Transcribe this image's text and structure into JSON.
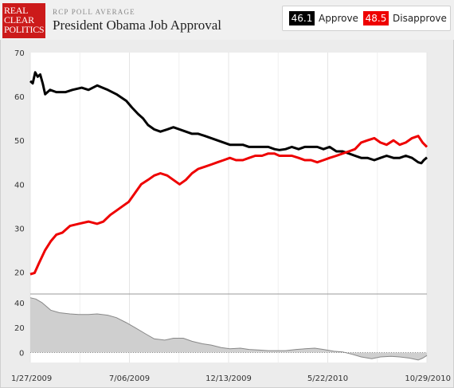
{
  "brand": {
    "logo_lines": [
      "REAL",
      "CLEAR",
      "POLITICS"
    ]
  },
  "header": {
    "kicker": "RCP POLL AVERAGE",
    "title": "President Obama Job Approval"
  },
  "legend": [
    {
      "value": "46.1",
      "label": "Approve",
      "color": "#000000"
    },
    {
      "value": "48.5",
      "label": "Disapprove",
      "color": "#ee0000"
    }
  ],
  "chart_data": {
    "type": "line",
    "title": "President Obama Job Approval",
    "x_tick_labels": [
      "1/27/2009",
      "7/06/2009",
      "12/13/2009",
      "5/22/2010",
      "10/29/2010"
    ],
    "x_domain": [
      "2009-01-27",
      "2010-10-29"
    ],
    "main": {
      "ylim": [
        15,
        70
      ],
      "yticks": [
        20,
        30,
        40,
        50,
        60,
        70
      ],
      "grid": "vertical",
      "series": [
        {
          "name": "Approve",
          "color": "#000000",
          "points": [
            [
              "2009-01-27",
              63.5
            ],
            [
              "2009-01-31",
              63.0
            ],
            [
              "2009-02-04",
              65.5
            ],
            [
              "2009-02-08",
              64.5
            ],
            [
              "2009-02-12",
              65.0
            ],
            [
              "2009-02-16",
              63.0
            ],
            [
              "2009-02-20",
              60.5
            ],
            [
              "2009-02-28",
              61.5
            ],
            [
              "2009-03-10",
              61.0
            ],
            [
              "2009-03-25",
              61.0
            ],
            [
              "2009-04-05",
              61.5
            ],
            [
              "2009-04-20",
              62.0
            ],
            [
              "2009-05-01",
              61.5
            ],
            [
              "2009-05-15",
              62.5
            ],
            [
              "2009-06-01",
              61.5
            ],
            [
              "2009-06-15",
              60.5
            ],
            [
              "2009-07-01",
              59.0
            ],
            [
              "2009-07-10",
              57.5
            ],
            [
              "2009-07-20",
              56.0
            ],
            [
              "2009-07-28",
              55.0
            ],
            [
              "2009-08-05",
              53.5
            ],
            [
              "2009-08-15",
              52.5
            ],
            [
              "2009-08-25",
              52.0
            ],
            [
              "2009-09-05",
              52.5
            ],
            [
              "2009-09-15",
              53.0
            ],
            [
              "2009-09-25",
              52.5
            ],
            [
              "2009-10-05",
              52.0
            ],
            [
              "2009-10-15",
              51.5
            ],
            [
              "2009-10-25",
              51.5
            ],
            [
              "2009-11-05",
              51.0
            ],
            [
              "2009-11-15",
              50.5
            ],
            [
              "2009-11-25",
              50.0
            ],
            [
              "2009-12-05",
              49.5
            ],
            [
              "2009-12-15",
              49.0
            ],
            [
              "2009-12-25",
              49.0
            ],
            [
              "2010-01-05",
              49.0
            ],
            [
              "2010-01-15",
              48.5
            ],
            [
              "2010-01-25",
              48.5
            ],
            [
              "2010-02-05",
              48.5
            ],
            [
              "2010-02-15",
              48.5
            ],
            [
              "2010-02-25",
              48.0
            ],
            [
              "2010-03-05",
              47.8
            ],
            [
              "2010-03-15",
              48.0
            ],
            [
              "2010-03-25",
              48.5
            ],
            [
              "2010-04-05",
              48.0
            ],
            [
              "2010-04-15",
              48.5
            ],
            [
              "2010-04-25",
              48.5
            ],
            [
              "2010-05-05",
              48.5
            ],
            [
              "2010-05-15",
              48.0
            ],
            [
              "2010-05-25",
              48.5
            ],
            [
              "2010-06-05",
              47.5
            ],
            [
              "2010-06-15",
              47.5
            ],
            [
              "2010-06-25",
              47.0
            ],
            [
              "2010-07-05",
              46.5
            ],
            [
              "2010-07-15",
              46.0
            ],
            [
              "2010-07-25",
              46.0
            ],
            [
              "2010-08-05",
              45.5
            ],
            [
              "2010-08-15",
              46.0
            ],
            [
              "2010-08-25",
              46.5
            ],
            [
              "2010-09-05",
              46.0
            ],
            [
              "2010-09-15",
              46.0
            ],
            [
              "2010-09-25",
              46.5
            ],
            [
              "2010-10-05",
              46.0
            ],
            [
              "2010-10-15",
              45.0
            ],
            [
              "2010-10-20",
              44.8
            ],
            [
              "2010-10-24",
              45.5
            ],
            [
              "2010-10-29",
              46.1
            ]
          ]
        },
        {
          "name": "Disapprove",
          "color": "#ee0000",
          "points": [
            [
              "2009-01-27",
              19.5
            ],
            [
              "2009-02-03",
              19.8
            ],
            [
              "2009-02-10",
              22.0
            ],
            [
              "2009-02-20",
              25.0
            ],
            [
              "2009-03-01",
              27.0
            ],
            [
              "2009-03-10",
              28.5
            ],
            [
              "2009-03-20",
              29.0
            ],
            [
              "2009-04-01",
              30.5
            ],
            [
              "2009-04-15",
              31.0
            ],
            [
              "2009-05-01",
              31.5
            ],
            [
              "2009-05-15",
              31.0
            ],
            [
              "2009-05-25",
              31.5
            ],
            [
              "2009-06-05",
              33.0
            ],
            [
              "2009-06-15",
              34.0
            ],
            [
              "2009-06-25",
              35.0
            ],
            [
              "2009-07-05",
              36.0
            ],
            [
              "2009-07-15",
              38.0
            ],
            [
              "2009-07-25",
              40.0
            ],
            [
              "2009-08-05",
              41.0
            ],
            [
              "2009-08-15",
              42.0
            ],
            [
              "2009-08-25",
              42.5
            ],
            [
              "2009-09-05",
              42.0
            ],
            [
              "2009-09-15",
              41.0
            ],
            [
              "2009-09-25",
              40.0
            ],
            [
              "2009-10-05",
              41.0
            ],
            [
              "2009-10-15",
              42.5
            ],
            [
              "2009-10-25",
              43.5
            ],
            [
              "2009-11-05",
              44.0
            ],
            [
              "2009-11-15",
              44.5
            ],
            [
              "2009-11-25",
              45.0
            ],
            [
              "2009-12-05",
              45.5
            ],
            [
              "2009-12-15",
              46.0
            ],
            [
              "2009-12-25",
              45.5
            ],
            [
              "2010-01-05",
              45.5
            ],
            [
              "2010-01-15",
              46.0
            ],
            [
              "2010-01-25",
              46.5
            ],
            [
              "2010-02-05",
              46.5
            ],
            [
              "2010-02-15",
              47.0
            ],
            [
              "2010-02-25",
              47.0
            ],
            [
              "2010-03-05",
              46.5
            ],
            [
              "2010-03-15",
              46.5
            ],
            [
              "2010-03-25",
              46.5
            ],
            [
              "2010-04-05",
              46.0
            ],
            [
              "2010-04-15",
              45.5
            ],
            [
              "2010-04-25",
              45.5
            ],
            [
              "2010-05-05",
              45.0
            ],
            [
              "2010-05-15",
              45.5
            ],
            [
              "2010-05-25",
              46.0
            ],
            [
              "2010-06-05",
              46.5
            ],
            [
              "2010-06-15",
              47.0
            ],
            [
              "2010-06-25",
              47.5
            ],
            [
              "2010-07-05",
              48.0
            ],
            [
              "2010-07-15",
              49.5
            ],
            [
              "2010-07-25",
              50.0
            ],
            [
              "2010-08-05",
              50.5
            ],
            [
              "2010-08-15",
              49.5
            ],
            [
              "2010-08-25",
              49.0
            ],
            [
              "2010-09-05",
              50.0
            ],
            [
              "2010-09-15",
              49.0
            ],
            [
              "2010-09-25",
              49.5
            ],
            [
              "2010-10-05",
              50.5
            ],
            [
              "2010-10-15",
              51.0
            ],
            [
              "2010-10-22",
              49.5
            ],
            [
              "2010-10-29",
              48.5
            ]
          ]
        }
      ]
    },
    "spread": {
      "type": "area",
      "ylim": [
        -8,
        47
      ],
      "yticks": [
        0,
        20,
        40
      ],
      "series": {
        "name": "Spread",
        "color": "#888888",
        "points": [
          [
            "2009-01-27",
            44
          ],
          [
            "2009-02-05",
            43
          ],
          [
            "2009-02-15",
            40
          ],
          [
            "2009-03-01",
            34
          ],
          [
            "2009-03-15",
            32
          ],
          [
            "2009-04-01",
            31
          ],
          [
            "2009-04-15",
            30.5
          ],
          [
            "2009-05-01",
            30.5
          ],
          [
            "2009-05-15",
            31.0
          ],
          [
            "2009-06-01",
            30.0
          ],
          [
            "2009-06-15",
            28.0
          ],
          [
            "2009-07-01",
            24.0
          ],
          [
            "2009-07-15",
            20.0
          ],
          [
            "2009-08-01",
            15.0
          ],
          [
            "2009-08-15",
            11.0
          ],
          [
            "2009-09-01",
            10.0
          ],
          [
            "2009-09-15",
            11.5
          ],
          [
            "2009-10-01",
            11.5
          ],
          [
            "2009-10-15",
            9.0
          ],
          [
            "2009-11-01",
            7.0
          ],
          [
            "2009-11-15",
            6.0
          ],
          [
            "2009-12-01",
            4.0
          ],
          [
            "2009-12-15",
            3.0
          ],
          [
            "2010-01-01",
            3.5
          ],
          [
            "2010-01-15",
            2.5
          ],
          [
            "2010-02-01",
            2.0
          ],
          [
            "2010-02-15",
            1.5
          ],
          [
            "2010-03-01",
            1.5
          ],
          [
            "2010-03-15",
            1.5
          ],
          [
            "2010-04-01",
            2.5
          ],
          [
            "2010-04-15",
            3.0
          ],
          [
            "2010-05-01",
            3.5
          ],
          [
            "2010-05-15",
            2.5
          ],
          [
            "2010-06-01",
            1.0
          ],
          [
            "2010-06-15",
            0.5
          ],
          [
            "2010-07-01",
            -1.5
          ],
          [
            "2010-07-15",
            -3.5
          ],
          [
            "2010-08-01",
            -5.0
          ],
          [
            "2010-08-15",
            -3.5
          ],
          [
            "2010-09-01",
            -3.0
          ],
          [
            "2010-09-15",
            -3.5
          ],
          [
            "2010-10-01",
            -4.5
          ],
          [
            "2010-10-15",
            -6.0
          ],
          [
            "2010-10-22",
            -4.5
          ],
          [
            "2010-10-29",
            -2.4
          ]
        ]
      }
    }
  }
}
